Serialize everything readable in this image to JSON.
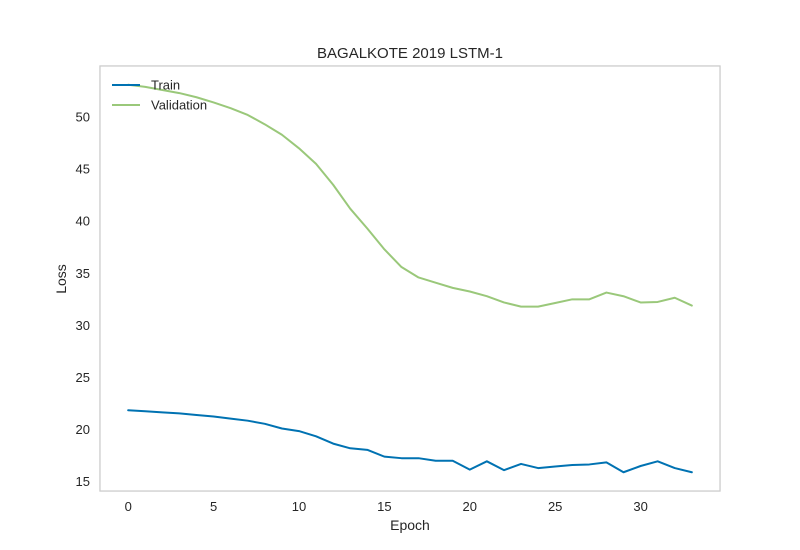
{
  "chart_data": {
    "type": "line",
    "title": "BAGALKOTE 2019 LSTM-1",
    "xlabel": "Epoch",
    "ylabel": "Loss",
    "xlim": [
      -1.65,
      34.65
    ],
    "ylim": [
      14.1,
      54.9
    ],
    "xticks": [
      0,
      5,
      10,
      15,
      20,
      25,
      30
    ],
    "yticks": [
      15,
      20,
      25,
      30,
      35,
      40,
      45,
      50
    ],
    "grid": true,
    "legend_position": "top-left",
    "x": [
      0,
      1,
      2,
      3,
      4,
      5,
      6,
      7,
      8,
      9,
      10,
      11,
      12,
      13,
      14,
      15,
      16,
      17,
      18,
      19,
      20,
      21,
      22,
      23,
      24,
      25,
      26,
      27,
      28,
      29,
      30,
      31,
      32,
      33
    ],
    "series": [
      {
        "name": "Train",
        "color": "#0072b2",
        "values": [
          21.85,
          21.75,
          21.65,
          21.55,
          21.4,
          21.25,
          21.05,
          20.85,
          20.55,
          20.1,
          19.85,
          19.35,
          18.65,
          18.2,
          18.05,
          17.4,
          17.25,
          17.25,
          17.0,
          17.0,
          16.15,
          16.95,
          16.1,
          16.7,
          16.3,
          16.45,
          16.6,
          16.65,
          16.85,
          15.9,
          16.5,
          16.95,
          16.3,
          15.9
        ]
      },
      {
        "name": "Validation",
        "color": "#9ac87a",
        "values": [
          53.1,
          52.9,
          52.6,
          52.3,
          51.9,
          51.4,
          50.85,
          50.2,
          49.3,
          48.3,
          47.0,
          45.5,
          43.5,
          41.2,
          39.3,
          37.3,
          35.6,
          34.6,
          34.1,
          33.6,
          33.25,
          32.8,
          32.2,
          31.8,
          31.8,
          32.15,
          32.5,
          32.5,
          33.15,
          32.8,
          32.2,
          32.25,
          32.65,
          31.9
        ]
      }
    ]
  }
}
